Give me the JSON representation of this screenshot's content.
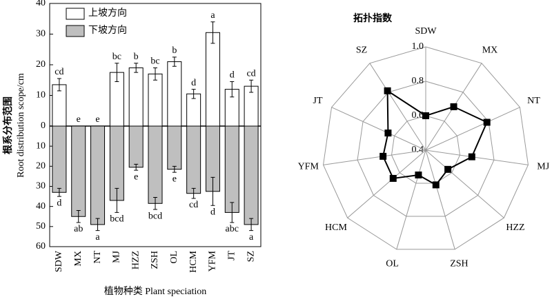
{
  "chart_data": [
    {
      "type": "bar",
      "ylabel": [
        "根系分布范围",
        "Root distribution scope/cm"
      ],
      "xlabel": "植物种类 Plant speciation",
      "categories": [
        "SDW",
        "MX",
        "NT",
        "MJ",
        "HZZ",
        "ZSH",
        "OL",
        "HCM",
        "YFM",
        "JT",
        "SZ"
      ],
      "series": [
        {
          "name": "上坡方向",
          "color": "#ffffff",
          "values": [
            13.5,
            0,
            0,
            17.5,
            19,
            17,
            21,
            10.5,
            30.5,
            12,
            13
          ],
          "errors": [
            2,
            0,
            0,
            3,
            1.5,
            2,
            1.5,
            1.5,
            3.5,
            2.5,
            2
          ],
          "labels": [
            "cd",
            "e",
            "e",
            "bc",
            "b",
            "bc",
            "b",
            "d",
            "a",
            "d",
            "cd"
          ]
        },
        {
          "name": "下坡方向",
          "color": "#bfbfbf",
          "values": [
            -33,
            -45,
            -49,
            -37,
            -20.5,
            -38.5,
            -21.5,
            -33.5,
            -32.5,
            -43,
            -49
          ],
          "errors": [
            2,
            3,
            3,
            6,
            1.5,
            3,
            1.5,
            2.5,
            7,
            5,
            3
          ],
          "labels": [
            "d",
            "ab",
            "a",
            "bcd",
            "e",
            "bcd",
            "e",
            "cd",
            "d",
            "abc",
            "a"
          ]
        }
      ],
      "ylim": [
        -60,
        40
      ],
      "yticks": [
        40,
        30,
        20,
        10,
        0,
        {
          "value": -10,
          "label": "10"
        },
        {
          "value": -20,
          "label": "20"
        },
        {
          "value": -30,
          "label": "30"
        },
        {
          "value": -40,
          "label": "40"
        },
        {
          "value": -50,
          "label": "50"
        },
        {
          "value": -60,
          "label": "60"
        }
      ]
    },
    {
      "type": "radar",
      "title": "拓扑指数",
      "categories": [
        "SDW",
        "MX",
        "NT",
        "MJ",
        "HZZ",
        "ZSH",
        "OL",
        "HCM",
        "YFM",
        "JT",
        "SZ"
      ],
      "values": [
        0.6,
        0.7,
        0.79,
        0.67,
        0.57,
        0.61,
        0.55,
        0.65,
        0.65,
        0.64,
        0.81
      ],
      "color": "#000000",
      "rlim": [
        0.4,
        1.0
      ],
      "rticks": [
        0.4,
        0.6,
        0.8,
        {
          "value": 1.0,
          "label": "1.0"
        }
      ]
    }
  ]
}
